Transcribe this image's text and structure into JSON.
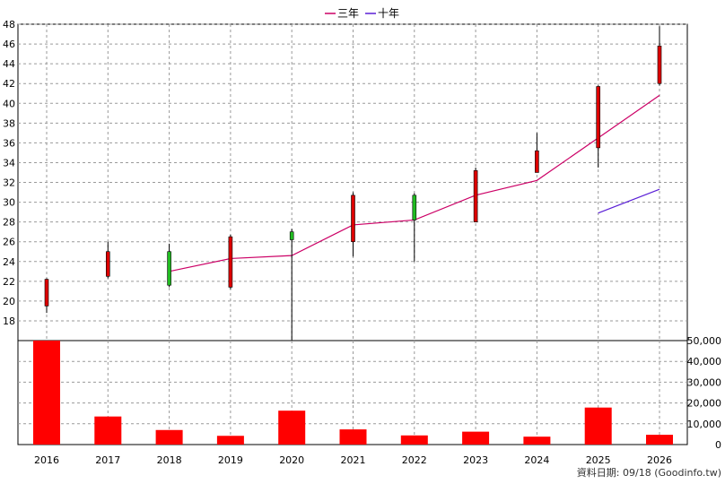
{
  "chart_data": {
    "type": "candlestick",
    "legend": [
      {
        "name": "三年",
        "color": "#cc0066"
      },
      {
        "name": "十年",
        "color": "#5a1fd6"
      }
    ],
    "legend_position": "top-center",
    "grid": true,
    "colors": {
      "up": "#dd0000",
      "down": "#22bb22",
      "volume": "#ff0000",
      "wick": "#000000"
    },
    "years": [
      "2016",
      "2017",
      "2018",
      "2019",
      "2020",
      "2021",
      "2022",
      "2023",
      "2024",
      "2025",
      "2026"
    ],
    "price_axis": {
      "min": 16,
      "max": 48,
      "ticks": [
        18,
        20,
        22,
        24,
        26,
        28,
        30,
        32,
        34,
        36,
        38,
        40,
        42,
        44,
        46,
        48
      ]
    },
    "volume_axis": {
      "min": 0,
      "max": 50000,
      "ticks": [
        0,
        10000,
        20000,
        30000,
        40000,
        50000
      ],
      "tick_labels": [
        "0",
        "10,000",
        "20,000",
        "30,000",
        "40,000",
        "50,000"
      ]
    },
    "candles": [
      {
        "year": "2016",
        "open": 19.5,
        "high": 22.3,
        "low": 18.8,
        "close": 22.2
      },
      {
        "year": "2017",
        "open": 22.5,
        "high": 26.0,
        "low": 22.3,
        "close": 25.0
      },
      {
        "year": "2018",
        "open": 25.0,
        "high": 25.8,
        "low": 21.4,
        "close": 21.6
      },
      {
        "year": "2019",
        "open": 21.4,
        "high": 26.7,
        "low": 21.2,
        "close": 26.5
      },
      {
        "year": "2020",
        "open": 27.0,
        "high": 27.3,
        "low": 16.0,
        "close": 26.2
      },
      {
        "year": "2021",
        "open": 26.0,
        "high": 31.0,
        "low": 24.5,
        "close": 30.7
      },
      {
        "year": "2022",
        "open": 30.7,
        "high": 30.9,
        "low": 24.0,
        "close": 28.2
      },
      {
        "year": "2023",
        "open": 28.0,
        "high": 33.5,
        "low": 28.0,
        "close": 33.2
      },
      {
        "year": "2024",
        "open": 33.0,
        "high": 37.0,
        "low": 33.0,
        "close": 35.2
      },
      {
        "year": "2025",
        "open": 35.5,
        "high": 41.8,
        "low": 33.5,
        "close": 41.7
      },
      {
        "year": "2026",
        "open": 42.0,
        "high": 47.8,
        "low": 41.8,
        "close": 45.8
      }
    ],
    "series": [
      {
        "name": "三年",
        "x": [
          "2018",
          "2019",
          "2020",
          "2021",
          "2022",
          "2023",
          "2024",
          "2025",
          "2026"
        ],
        "values": [
          23.0,
          24.3,
          24.6,
          27.7,
          28.2,
          30.7,
          32.2,
          36.5,
          40.8
        ]
      },
      {
        "name": "十年",
        "x": [
          "2025",
          "2026"
        ],
        "values": [
          28.9,
          31.3
        ]
      }
    ],
    "volume": [
      50500,
      13500,
      7000,
      4200,
      16300,
      7300,
      4400,
      6200,
      3800,
      17800,
      4700
    ],
    "footer": "資料日期: 09/18  (Goodinfo.tw)"
  }
}
